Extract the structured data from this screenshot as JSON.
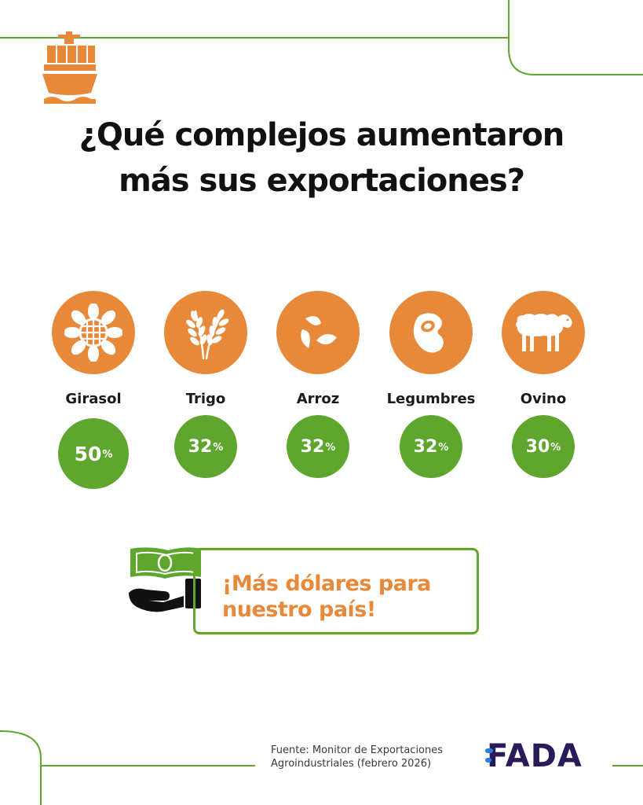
{
  "title": {
    "line1": "¿Qué complejos aumentaron",
    "line2": "más sus exportaciones?"
  },
  "items": [
    {
      "label": "Girasol",
      "value": "50",
      "unit": "%",
      "icon": "sunflower-icon"
    },
    {
      "label": "Trigo",
      "value": "32",
      "unit": "%",
      "icon": "wheat-icon"
    },
    {
      "label": "Arroz",
      "value": "32",
      "unit": "%",
      "icon": "rice-icon"
    },
    {
      "label": "Legumbres",
      "value": "32",
      "unit": "%",
      "icon": "bean-icon"
    },
    {
      "label": "Ovino",
      "value": "30",
      "unit": "%",
      "icon": "sheep-icon"
    }
  ],
  "cta": {
    "line1": "¡Más dólares para",
    "line2": "nuestro país!"
  },
  "source": {
    "line1": "Fuente: Monitor de Exportaciones",
    "line2": "Agroindustriales (febrero 2026)"
  },
  "logo": {
    "text": "FADA"
  },
  "colors": {
    "orange": "#e8893a",
    "green": "#5ea62e",
    "dark": "#111111",
    "logo": "#2b1a5a",
    "logo_accent": "#2a7de1"
  }
}
